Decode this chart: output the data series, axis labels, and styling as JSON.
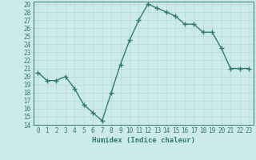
{
  "xlabel": "Humidex (Indice chaleur)",
  "x": [
    0,
    1,
    2,
    3,
    4,
    5,
    6,
    7,
    8,
    9,
    10,
    11,
    12,
    13,
    14,
    15,
    16,
    17,
    18,
    19,
    20,
    21,
    22,
    23
  ],
  "y": [
    20.5,
    19.5,
    19.5,
    20.0,
    18.5,
    16.5,
    15.5,
    14.5,
    18.0,
    21.5,
    24.5,
    27.0,
    29.0,
    28.5,
    28.0,
    27.5,
    26.5,
    26.5,
    25.5,
    25.5,
    23.5,
    21.0,
    21.0,
    21.0
  ],
  "line_color": "#2e7d6e",
  "marker": "+",
  "markersize": 4,
  "linewidth": 1.0,
  "markeredgewidth": 1.0,
  "bg_color": "#cdeaea",
  "grid_color": "#b8d8d8",
  "tick_color": "#2e7d6e",
  "label_color": "#2e7d6e",
  "ylim": [
    14,
    29
  ],
  "yticks": [
    14,
    15,
    16,
    17,
    18,
    19,
    20,
    21,
    22,
    23,
    24,
    25,
    26,
    27,
    28,
    29
  ],
  "xticks": [
    0,
    1,
    2,
    3,
    4,
    5,
    6,
    7,
    8,
    9,
    10,
    11,
    12,
    13,
    14,
    15,
    16,
    17,
    18,
    19,
    20,
    21,
    22,
    23
  ],
  "xlabel_fontsize": 6.5,
  "tick_fontsize": 5.5
}
